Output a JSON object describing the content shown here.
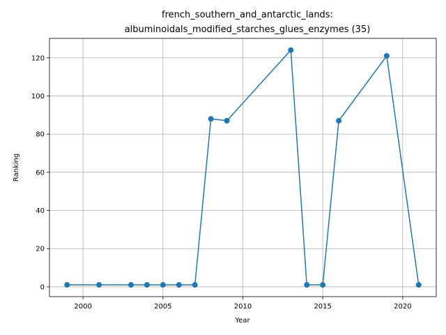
{
  "chart_data": {
    "type": "line",
    "title_line1": "french_southern_and_antarctic_lands:",
    "title_line2": "albuminoidals_modified_starches_glues_enzymes (35)",
    "xlabel": "Year",
    "ylabel": "Ranking",
    "xlim": [
      1997.9,
      2022.1
    ],
    "ylim": [
      -5.15,
      130.15
    ],
    "xticks": [
      2000,
      2005,
      2010,
      2015,
      2020
    ],
    "yticks": [
      0,
      20,
      40,
      60,
      80,
      100,
      120
    ],
    "grid": true,
    "color": "#1f77b4",
    "x": [
      1999,
      2001,
      2003,
      2004,
      2005,
      2006,
      2007,
      2008,
      2009,
      2013,
      2014,
      2015,
      2016,
      2019,
      2021
    ],
    "y": [
      1,
      1,
      1,
      1,
      1,
      1,
      1,
      88,
      87,
      124,
      1,
      1,
      87,
      121,
      1
    ]
  }
}
